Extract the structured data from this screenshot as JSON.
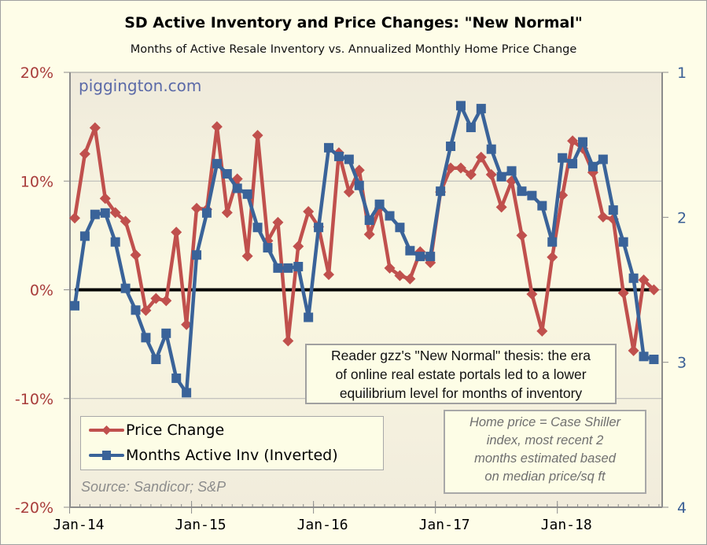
{
  "chart_data": {
    "type": "line",
    "title": "SD Active Inventory and Price Changes: \"New Normal\"",
    "subtitle": "Months of Active Resale Inventory vs. Annualized Monthly Home Price Change",
    "watermark": "piggington.com",
    "xlabel": "",
    "x_tick_labels": [
      "Jan-14",
      "Jan-15",
      "Jan-16",
      "Jan-17",
      "Jan-18"
    ],
    "x_start": "Jan-14",
    "y_left": {
      "label": "",
      "range": [
        -20,
        20
      ],
      "ticks": [
        20,
        10,
        0,
        -10,
        -20
      ],
      "tick_labels": [
        "20%",
        "10%",
        "0%",
        "-10%",
        "-20%"
      ],
      "color": "#a83c3a"
    },
    "y_right": {
      "label": "",
      "range": [
        1,
        4
      ],
      "inverted": true,
      "ticks": [
        1,
        2,
        3,
        4
      ],
      "tick_labels": [
        "1",
        "2",
        "3",
        "4"
      ],
      "color": "#3a5f95"
    },
    "grid": true,
    "zero_line": true,
    "legend": {
      "placement": "bottom-left",
      "entries": [
        "Price Change",
        "Months Active Inv (Inverted)"
      ]
    },
    "series": [
      {
        "name": "Price Change",
        "axis": "left",
        "marker": "diamond",
        "color": "#c0504d",
        "values": [
          6.6,
          12.5,
          14.9,
          8.4,
          7.1,
          6.3,
          3.2,
          -1.9,
          -0.8,
          -1.0,
          5.3,
          -3.2,
          7.5,
          7.4,
          15.0,
          7.1,
          10.2,
          3.1,
          14.2,
          4.5,
          6.2,
          -4.7,
          4.0,
          7.2,
          5.8,
          1.4,
          12.6,
          9.0,
          11.0,
          5.1,
          7.5,
          2.0,
          1.3,
          1.0,
          3.5,
          2.5,
          9.0,
          11.2,
          11.2,
          10.6,
          12.2,
          10.6,
          7.6,
          10.0,
          5.0,
          -0.4,
          -3.8,
          3.0,
          8.7,
          13.7,
          13.0,
          10.8,
          6.7,
          6.5,
          -0.3,
          -5.6,
          0.9,
          0.0
        ]
      },
      {
        "name": "Months Active Inv (Inverted)",
        "axis": "right",
        "marker": "square",
        "color": "#3a6399",
        "values": [
          2.61,
          2.13,
          1.98,
          1.97,
          2.17,
          2.49,
          2.64,
          2.83,
          2.98,
          2.8,
          3.11,
          3.21,
          2.26,
          1.97,
          1.63,
          1.7,
          1.8,
          1.84,
          2.07,
          2.21,
          2.35,
          2.35,
          2.34,
          2.69,
          2.07,
          1.52,
          1.58,
          1.6,
          1.78,
          2.02,
          1.91,
          1.99,
          2.07,
          2.23,
          2.27,
          2.27,
          1.82,
          1.51,
          1.23,
          1.38,
          1.25,
          1.53,
          1.72,
          1.68,
          1.82,
          1.85,
          1.92,
          2.17,
          1.59,
          1.63,
          1.48,
          1.65,
          1.6,
          1.95,
          2.17,
          2.42,
          2.96,
          2.98
        ]
      }
    ],
    "annotations": {
      "thesis": [
        "Reader gzz's \"New Normal\" thesis: the era",
        "of online real estate portals led to a lower",
        "equilibrium level for months of inventory"
      ],
      "note": [
        "Home price = Case Shiller",
        "index, most recent 2",
        "months estimated based",
        "on median price/sq ft"
      ],
      "source": "Source: Sandicor; S&P"
    }
  }
}
